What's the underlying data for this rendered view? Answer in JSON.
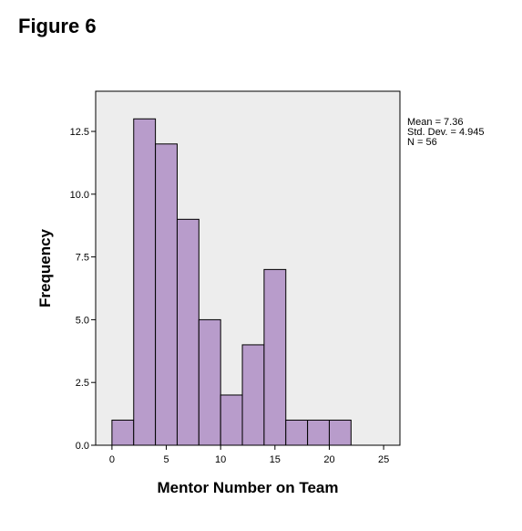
{
  "figure_title": "Figure 6",
  "chart_data": {
    "type": "bar",
    "subtype": "histogram",
    "xlabel": "Mentor Number on Team",
    "ylabel": "Frequency",
    "xlim": [
      -1.5,
      26.5
    ],
    "ylim": [
      0,
      14.1
    ],
    "x_ticks": [
      0,
      5,
      10,
      15,
      20,
      25
    ],
    "x_tick_labels": [
      "0",
      "5",
      "10",
      "15",
      "20",
      "25"
    ],
    "y_ticks": [
      0,
      2.5,
      5,
      7.5,
      10,
      12.5
    ],
    "y_tick_labels": [
      "0.0",
      "2.5",
      "5.0",
      "7.5",
      "10.0",
      "12.5"
    ],
    "bins": [
      {
        "start": 0,
        "end": 2,
        "count": 1
      },
      {
        "start": 2,
        "end": 4,
        "count": 13
      },
      {
        "start": 4,
        "end": 6,
        "count": 12
      },
      {
        "start": 6,
        "end": 8,
        "count": 9
      },
      {
        "start": 8,
        "end": 10,
        "count": 5
      },
      {
        "start": 10,
        "end": 12,
        "count": 2
      },
      {
        "start": 12,
        "end": 14,
        "count": 4
      },
      {
        "start": 14,
        "end": 16,
        "count": 7
      },
      {
        "start": 16,
        "end": 18,
        "count": 1
      },
      {
        "start": 18,
        "end": 20,
        "count": 1
      },
      {
        "start": 20,
        "end": 22,
        "count": 1
      }
    ],
    "stats": [
      "Mean = 7.36",
      "Std. Dev. = 4.945",
      "N = 56"
    ],
    "grid": false,
    "colors": {
      "bar_fill": "#b89ccb",
      "bar_stroke": "#000000",
      "plot_bg": "#ededed",
      "frame": "#000000"
    }
  }
}
